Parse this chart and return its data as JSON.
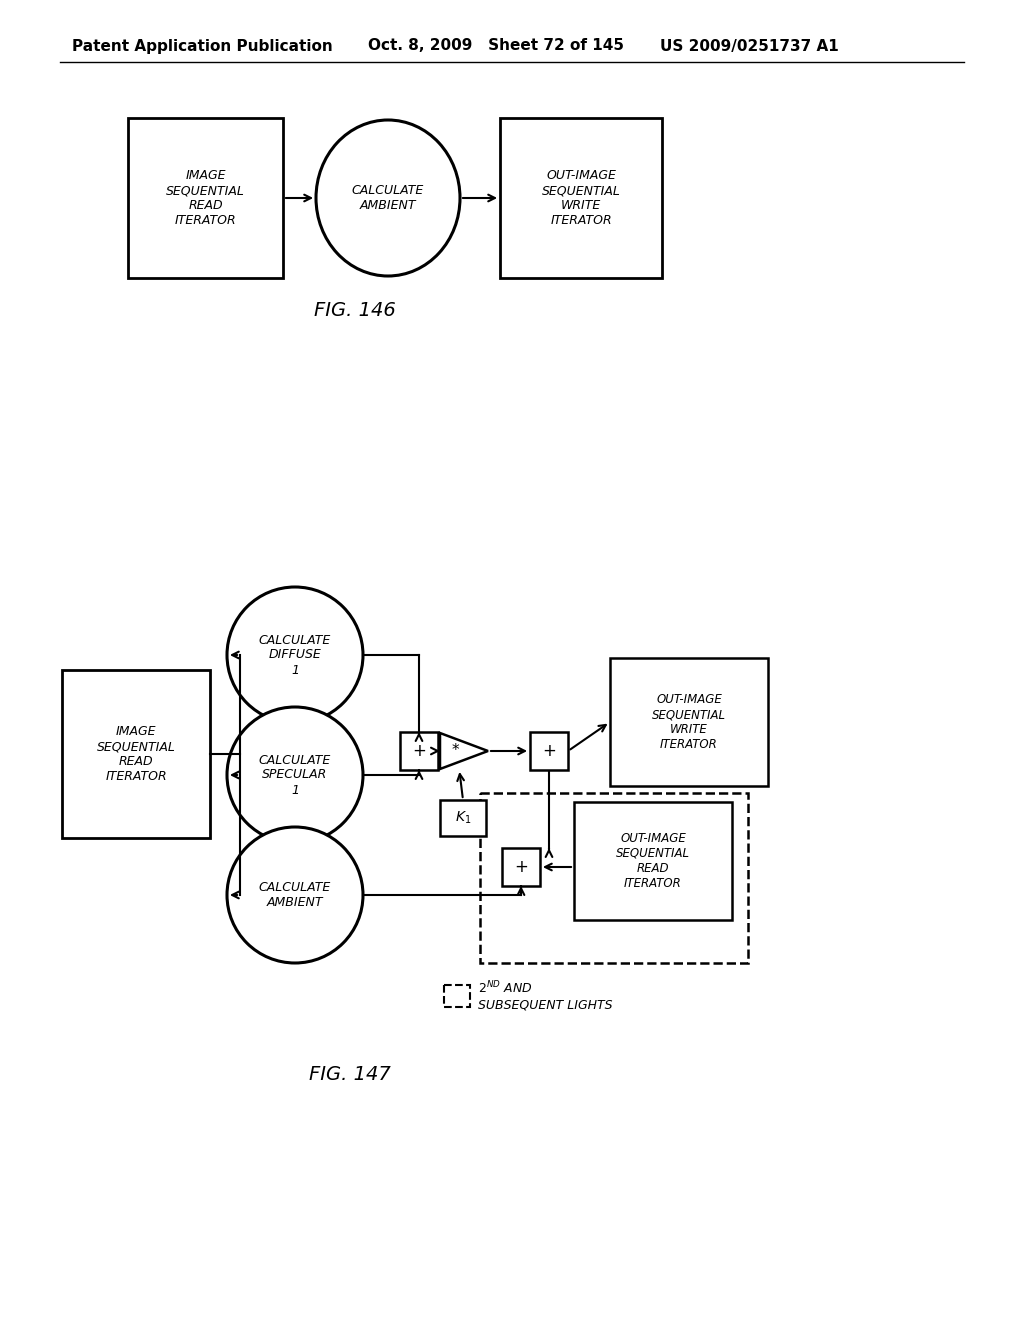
{
  "bg_color": "#ffffff",
  "text_color": "#000000",
  "header_left": "Patent Application Publication",
  "header_mid": "Oct. 8, 2009   Sheet 72 of 145",
  "header_right": "US 2009/0251737 A1",
  "fig146_label": "FIG. 146",
  "fig147_label": "FIG. 147",
  "font_size_header": 11,
  "font_size_box": 9,
  "font_size_fig": 14
}
